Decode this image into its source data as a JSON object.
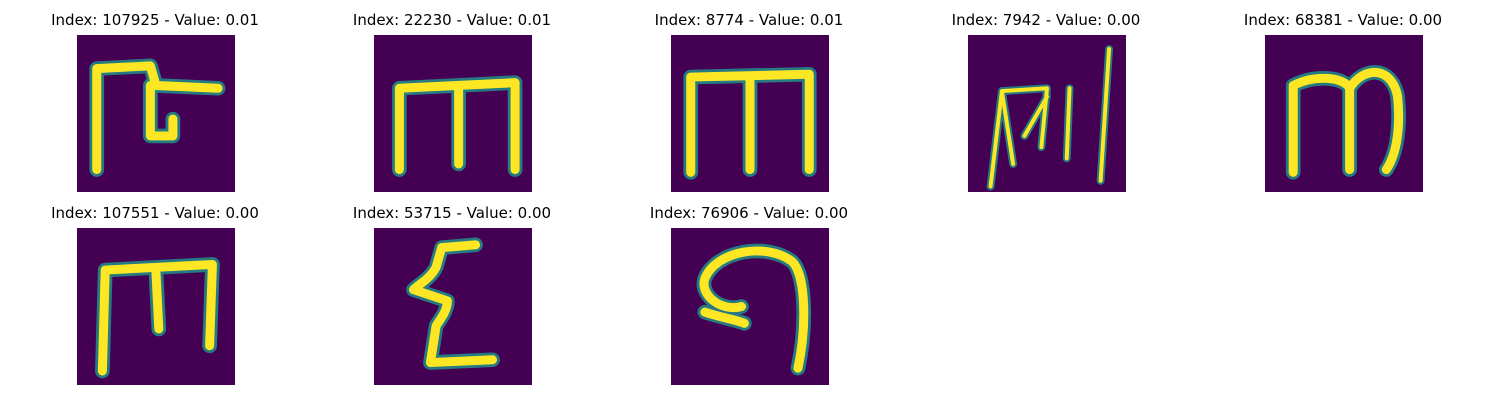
{
  "figure": {
    "panels": [
      {
        "index": "107925",
        "value": "0.01",
        "title": "Index: 107925 - Value: 0.01"
      },
      {
        "index": "22230",
        "value": "0.01",
        "title": "Index: 22230 - Value: 0.01"
      },
      {
        "index": "8774",
        "value": "0.01",
        "title": "Index: 8774 - Value: 0.01"
      },
      {
        "index": "7942",
        "value": "0.00",
        "title": "Index: 7942 - Value: 0.00"
      },
      {
        "index": "68381",
        "value": "0.00",
        "title": "Index: 68381 - Value: 0.00"
      },
      {
        "index": "107551",
        "value": "0.00",
        "title": "Index: 107551 - Value: 0.00"
      },
      {
        "index": "53715",
        "value": "0.00",
        "title": "Index: 53715 - Value: 0.00"
      },
      {
        "index": "76906",
        "value": "0.00",
        "title": "Index: 76906 - Value: 0.00"
      }
    ],
    "colors": {
      "background": "#440154",
      "stroke": "#fde725",
      "edge": "#21918c"
    }
  }
}
